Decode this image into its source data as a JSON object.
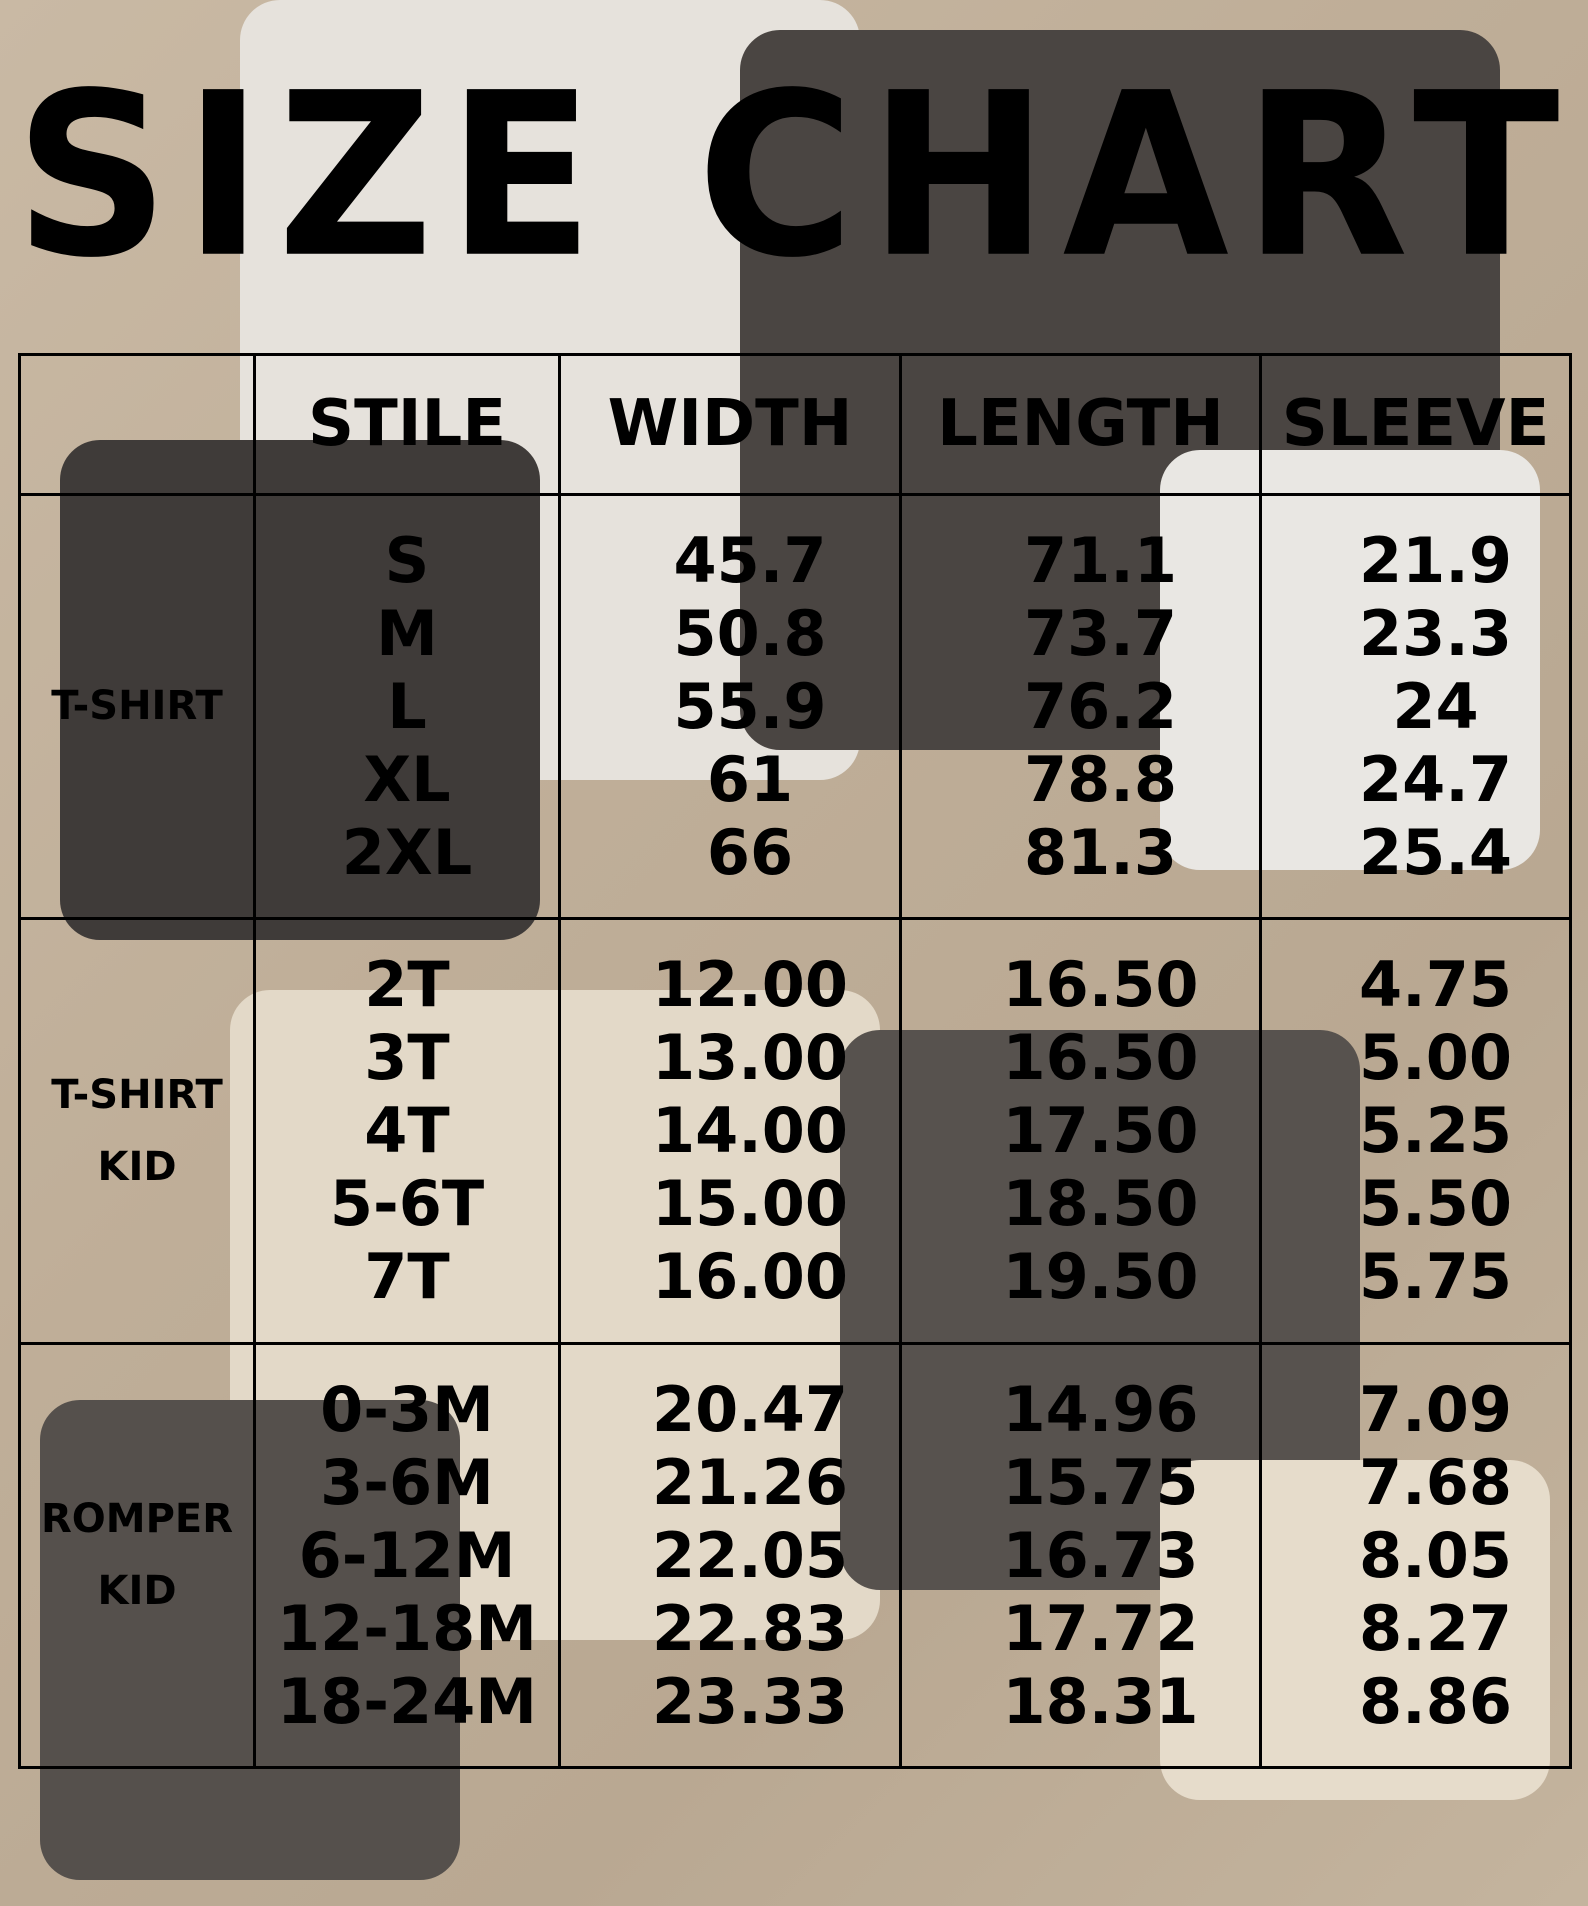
{
  "title": "SIZE CHART",
  "columns": [
    "STILE",
    "WIDTH",
    "LENGTH",
    "SLEEVE"
  ],
  "chart_data": {
    "type": "table",
    "columns": [
      "STILE",
      "WIDTH",
      "LENGTH",
      "SLEEVE"
    ],
    "groups": [
      {
        "name": "T-SHIRT",
        "rows": [
          [
            "S",
            "45.7",
            "71.1",
            "21.9"
          ],
          [
            "M",
            "50.8",
            "73.7",
            "23.3"
          ],
          [
            "L",
            "55.9",
            "76.2",
            "24"
          ],
          [
            "XL",
            "61",
            "78.8",
            "24.7"
          ],
          [
            "2XL",
            "66",
            "81.3",
            "25.4"
          ]
        ]
      },
      {
        "name": "T-SHIRT KID",
        "rows": [
          [
            "2T",
            "12.00",
            "16.50",
            "4.75"
          ],
          [
            "3T",
            "13.00",
            "16.50",
            "5.00"
          ],
          [
            "4T",
            "14.00",
            "17.50",
            "5.25"
          ],
          [
            "5-6T",
            "15.00",
            "18.50",
            "5.50"
          ],
          [
            "7T",
            "16.00",
            "19.50",
            "5.75"
          ]
        ]
      },
      {
        "name": "ROMPER KID",
        "rows": [
          [
            "0-3M",
            "20.47",
            "14.96",
            "7.09"
          ],
          [
            "3-6M",
            "21.26",
            "15.75",
            "7.68"
          ],
          [
            "6-12M",
            "22.05",
            "16.73",
            "8.05"
          ],
          [
            "12-18M",
            "22.83",
            "17.72",
            "8.27"
          ],
          [
            "18-24M",
            "23.33",
            "18.31",
            "8.86"
          ]
        ]
      }
    ]
  }
}
